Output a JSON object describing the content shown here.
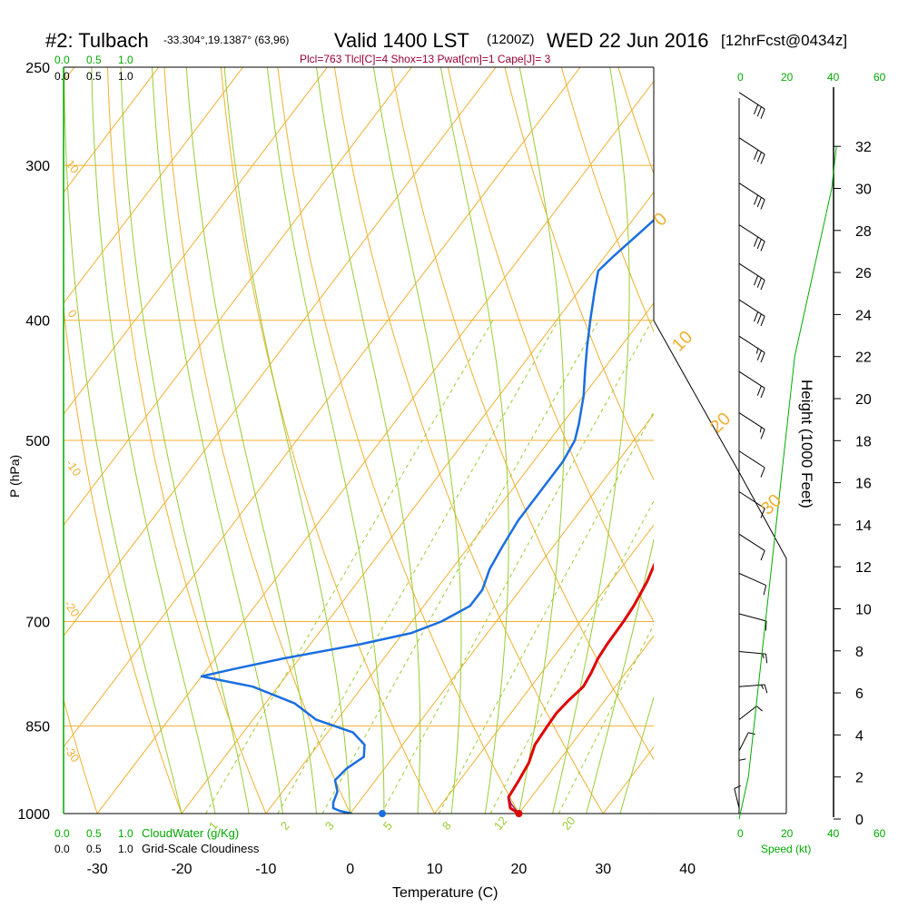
{
  "header": {
    "station": "#2: Tulbach",
    "coords": "-33.304°,19.1387° (63,96)",
    "valid": "Valid 1400 LST",
    "zulu": "(1200Z)",
    "date": "WED 22 Jun 2016",
    "fcst": "[12hrFcst@0434z]",
    "indices": "Plcl=763 Tlcl[C]=4 Shox=13 Pwat[cm]=1 Cape[J]= 3"
  },
  "colors": {
    "temperature": "#e00000",
    "dewpoint": "#1a6ee0",
    "isobar": "#f0b030",
    "isotherm": "#f0b030",
    "dry_adiabat": "#f0b030",
    "moist_adiabat": "#99cc33",
    "mixing_ratio": "#99cc33",
    "height_curve": "#00aa00",
    "wind_barb": "#000000"
  },
  "chart_data": {
    "type": "line",
    "title": "#2: Tulbach  Valid 1400 LST (1200Z) WED 22 Jun 2016",
    "xlabel": "Temperature (C)",
    "ylabel": "P (hPa)",
    "y2label": "Height (1000 Feet)",
    "x_ticks": [
      "-30",
      "-20",
      "-10",
      "0",
      "10",
      "20",
      "30",
      "40"
    ],
    "p_ticks": [
      "250",
      "300",
      "400",
      "500",
      "700",
      "850",
      "1000"
    ],
    "height_ticks": [
      "0",
      "2",
      "4",
      "6",
      "8",
      "10",
      "12",
      "14",
      "16",
      "18",
      "20",
      "22",
      "24",
      "26",
      "28",
      "30",
      "32"
    ],
    "xlim": [
      -34,
      36
    ],
    "ylim_hpa": [
      1000,
      250
    ],
    "y_scale": "log",
    "top_scale_green": [
      "0.0",
      "0.5",
      "1.0"
    ],
    "top_scale_black": [
      "0.0",
      "0.5",
      "1.0"
    ],
    "bottom_scale_green": [
      "0.0",
      "0.5",
      "1.0"
    ],
    "bottom_scale_black": [
      "0.0",
      "0.5",
      "1.0"
    ],
    "cloud_water_label": "CloudWater (g/Kg)",
    "cloudiness_label": "Grid-Scale Cloudiness",
    "wind_speed_ticks": [
      "0",
      "20",
      "40",
      "60"
    ],
    "wind_speed_label": "Speed (kt)",
    "mixing_ratio_labels": [
      "1",
      "2",
      "3",
      "5",
      "8",
      "12",
      "20"
    ],
    "dry_adiabat_labels": [
      "10",
      "0",
      "-10",
      "-20",
      "-30"
    ],
    "moist_adiabat_labels": [
      "0",
      "10",
      "20",
      "30"
    ],
    "series": [
      {
        "name": "Temperature",
        "points": [
          [
            20.0,
            1000
          ],
          [
            18.5,
            990
          ],
          [
            17.3,
            970
          ],
          [
            17.0,
            940
          ],
          [
            16.6,
            910
          ],
          [
            15.7,
            880
          ],
          [
            15.5,
            850
          ],
          [
            15.4,
            830
          ],
          [
            15.7,
            810
          ],
          [
            16.2,
            790
          ],
          [
            15.9,
            770
          ],
          [
            15.4,
            750
          ],
          [
            15.2,
            730
          ],
          [
            15.1,
            700
          ],
          [
            14.9,
            680
          ],
          [
            14.3,
            650
          ],
          [
            13.3,
            620
          ],
          [
            12.3,
            590
          ],
          [
            10.7,
            560
          ],
          [
            9.0,
            530
          ],
          [
            7.0,
            500
          ],
          [
            4.0,
            470
          ],
          [
            1.0,
            440
          ],
          [
            -1.8,
            410
          ],
          [
            -4.3,
            385
          ],
          [
            -6.9,
            360
          ],
          [
            -9.9,
            335
          ],
          [
            -13.0,
            313
          ],
          [
            -15.9,
            295
          ],
          [
            -18.5,
            280
          ],
          [
            -19.4,
            270
          ],
          [
            -20.2,
            262
          ]
        ]
      },
      {
        "name": "Dewpoint",
        "points": [
          [
            0.2,
            1000
          ],
          [
            -1.5,
            995
          ],
          [
            -2.5,
            990
          ],
          [
            -3.0,
            980
          ],
          [
            -3.5,
            960
          ],
          [
            -4.8,
            940
          ],
          [
            -4.5,
            920
          ],
          [
            -3.5,
            900
          ],
          [
            -4.5,
            880
          ],
          [
            -7.0,
            860
          ],
          [
            -12.5,
            840
          ],
          [
            -16.5,
            815
          ],
          [
            -23.0,
            790
          ],
          [
            -30.0,
            775
          ],
          [
            -27.0,
            765
          ],
          [
            -22.0,
            750
          ],
          [
            -14.0,
            730
          ],
          [
            -9.0,
            715
          ],
          [
            -6.5,
            700
          ],
          [
            -4.5,
            680
          ],
          [
            -4.5,
            660
          ],
          [
            -5.5,
            635
          ],
          [
            -6.0,
            610
          ],
          [
            -6.5,
            580
          ],
          [
            -6.5,
            550
          ],
          [
            -6.5,
            520
          ],
          [
            -7.0,
            500
          ],
          [
            -8.0,
            485
          ],
          [
            -10.0,
            460
          ],
          [
            -12.0,
            440
          ],
          [
            -14.0,
            420
          ],
          [
            -16.0,
            400
          ],
          [
            -18.0,
            380
          ],
          [
            -19.5,
            365
          ],
          [
            -19.0,
            355
          ],
          [
            -18.0,
            340
          ],
          [
            -17.0,
            325
          ],
          [
            -16.0,
            310
          ],
          [
            -15.5,
            295
          ],
          [
            -15.0,
            280
          ],
          [
            -15.0,
            270
          ],
          [
            -15.0,
            262
          ]
        ]
      },
      {
        "name": "Parcel",
        "points": [
          [
            20.0,
            1000
          ],
          [
            19.2,
            992
          ],
          [
            18.2,
            982
          ],
          [
            17.3,
            970
          ]
        ]
      },
      {
        "name": "Height",
        "points": [
          [
            0,
            0
          ],
          [
            2,
            1
          ],
          [
            4,
            2
          ],
          [
            6,
            4
          ],
          [
            8,
            6
          ],
          [
            10,
            8
          ],
          [
            12,
            10
          ],
          [
            14,
            12
          ],
          [
            16,
            14
          ],
          [
            18,
            16
          ],
          [
            20,
            18
          ],
          [
            22,
            20
          ],
          [
            24,
            22
          ],
          [
            28,
            24
          ],
          [
            32,
            26
          ],
          [
            36,
            28
          ],
          [
            40,
            30
          ],
          [
            42,
            32
          ]
        ]
      }
    ],
    "surface_dewpoint_dot": [
      3.8,
      1000
    ],
    "surface_temp_dot": [
      20.0,
      1000
    ],
    "wind_barbs": [
      {
        "p": 262,
        "speed": 30,
        "dir": 290
      },
      {
        "p": 285,
        "speed": 30,
        "dir": 290
      },
      {
        "p": 310,
        "speed": 30,
        "dir": 290
      },
      {
        "p": 335,
        "speed": 30,
        "dir": 290
      },
      {
        "p": 360,
        "speed": 30,
        "dir": 290
      },
      {
        "p": 385,
        "speed": 30,
        "dir": 290
      },
      {
        "p": 412,
        "speed": 25,
        "dir": 290
      },
      {
        "p": 440,
        "speed": 20,
        "dir": 290
      },
      {
        "p": 475,
        "speed": 15,
        "dir": 290
      },
      {
        "p": 510,
        "speed": 10,
        "dir": 290
      },
      {
        "p": 550,
        "speed": 10,
        "dir": 290
      },
      {
        "p": 595,
        "speed": 10,
        "dir": 290
      },
      {
        "p": 640,
        "speed": 10,
        "dir": 280
      },
      {
        "p": 690,
        "speed": 10,
        "dir": 270
      },
      {
        "p": 740,
        "speed": 15,
        "dir": 260
      },
      {
        "p": 790,
        "speed": 15,
        "dir": 250
      },
      {
        "p": 840,
        "speed": 10,
        "dir": 220
      },
      {
        "p": 890,
        "speed": 10,
        "dir": 200
      },
      {
        "p": 940,
        "speed": 10,
        "dir": 180
      },
      {
        "p": 990,
        "speed": 10,
        "dir": 170
      }
    ]
  }
}
